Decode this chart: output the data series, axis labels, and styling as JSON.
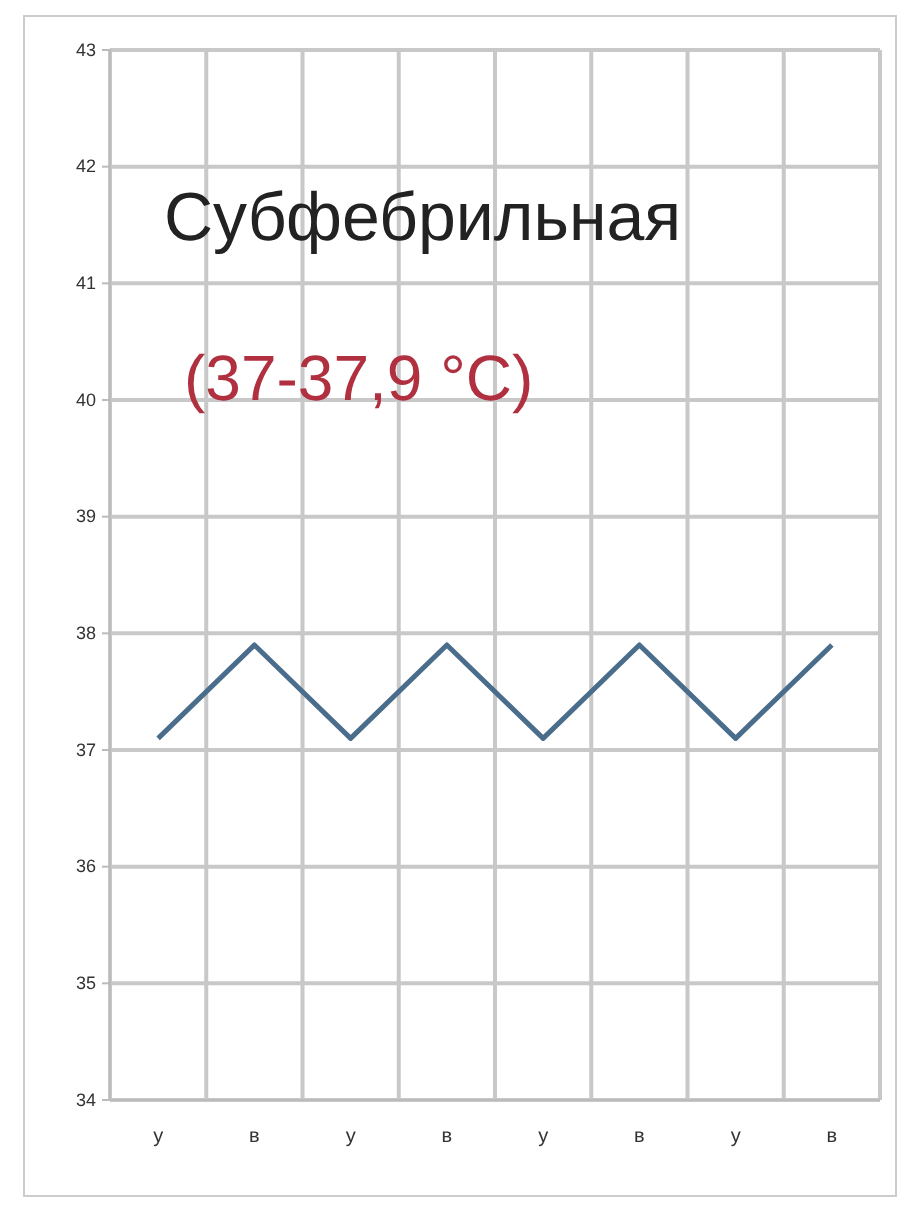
{
  "chart_data": {
    "type": "line",
    "categories": [
      "у",
      "в",
      "у",
      "в",
      "у",
      "в",
      "у",
      "в"
    ],
    "series": [
      {
        "color": "#4a6d8c",
        "values": [
          37.1,
          37.9,
          37.1,
          37.9,
          37.1,
          37.9,
          37.1,
          37.9
        ]
      }
    ],
    "ylim": [
      34,
      43
    ],
    "yticks": [
      34,
      35,
      36,
      37,
      38,
      39,
      40,
      41,
      42,
      43
    ],
    "grid": true,
    "marker": "none",
    "line_style": "solid",
    "annotations": [
      "Субфебрильная",
      "(37-37,9 °C)"
    ]
  }
}
